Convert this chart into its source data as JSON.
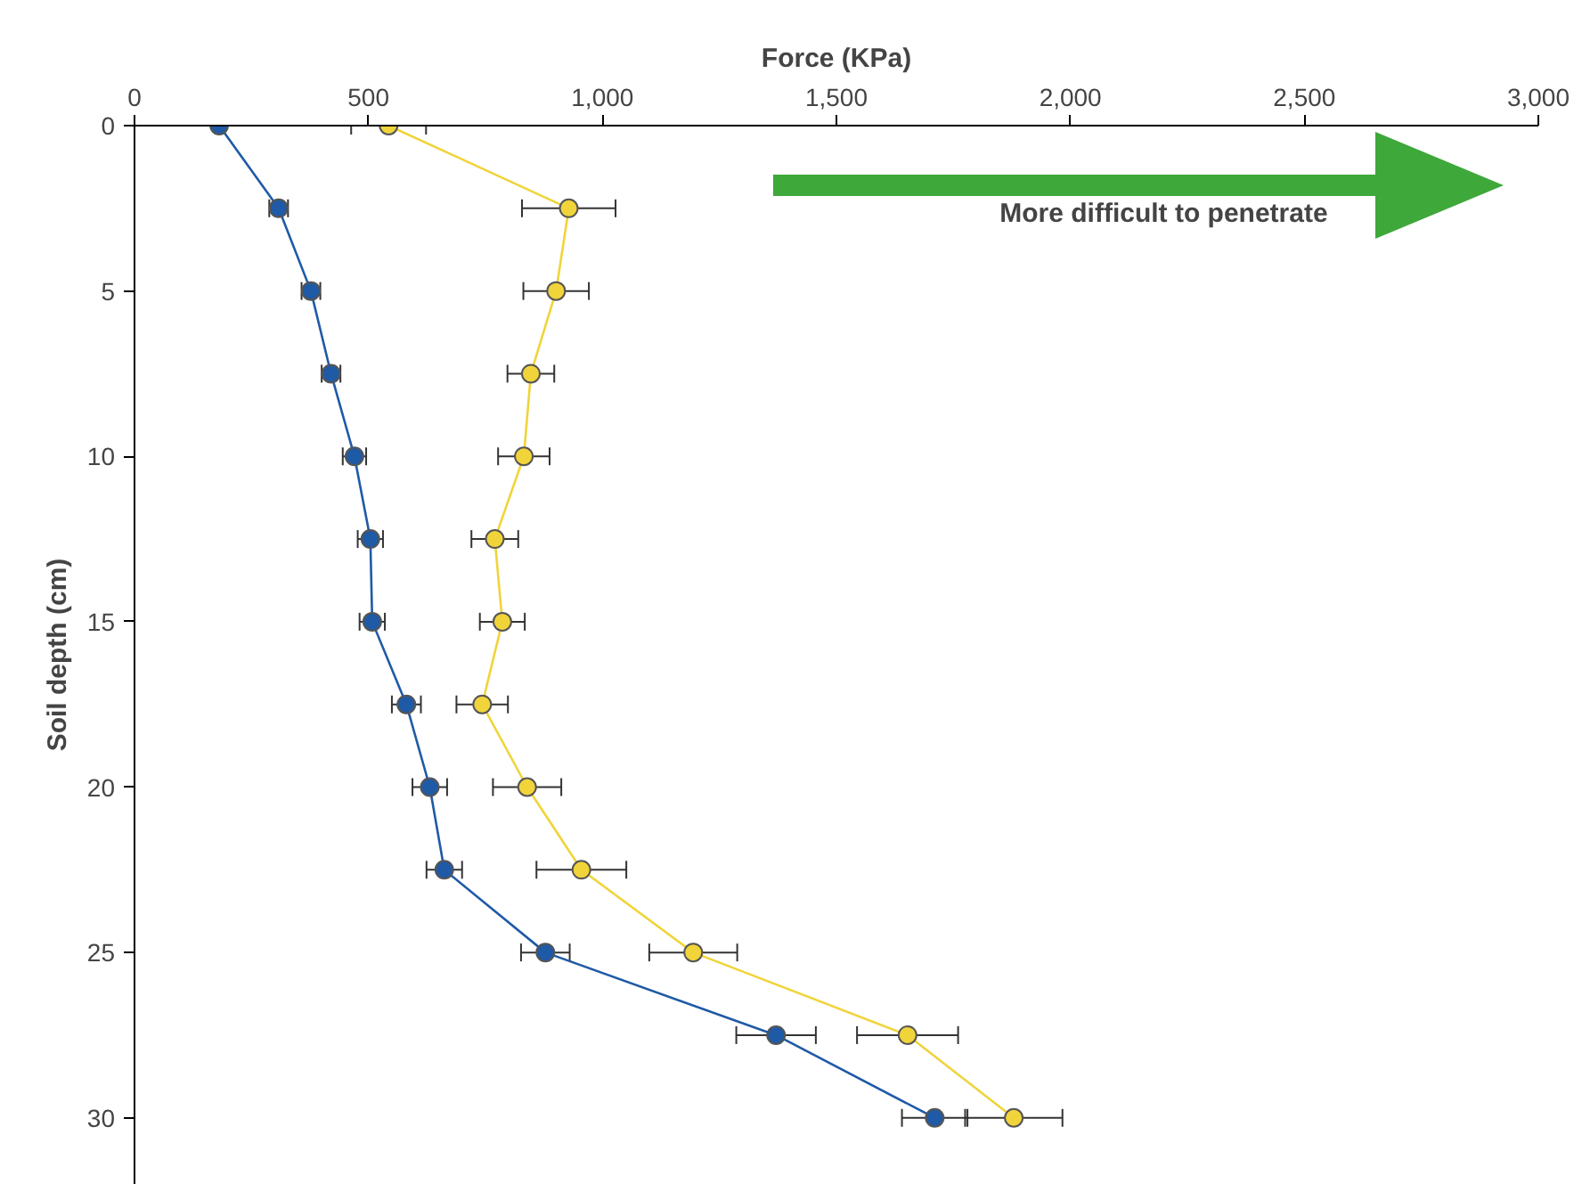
{
  "chart_data": {
    "type": "line",
    "xlabel": "Force (KPa)",
    "ylabel": "Soil depth (cm)",
    "annotations": [
      "More difficult to penetrate"
    ],
    "xlim": [
      0,
      3000
    ],
    "xticks": [
      0,
      500,
      {
        "value": 1000,
        "label": "1,000"
      },
      {
        "value": 1500,
        "label": "1,500"
      },
      {
        "value": 2000,
        "label": "2,000"
      },
      {
        "value": 2500,
        "label": "2,500"
      },
      {
        "value": 3000,
        "label": "3,000"
      }
    ],
    "ylim": [
      32,
      0
    ],
    "yticks": [
      0,
      5,
      10,
      15,
      20,
      25,
      30
    ],
    "grid": false,
    "marker": "circle",
    "line_style": "solid",
    "series": [
      {
        "color": "#1f5aa6",
        "x": [
          181,
          308,
          377,
          420,
          470,
          504,
          508,
          581,
          631,
          662,
          878,
          1371,
          1710
        ],
        "values": [
          0,
          2.5,
          5,
          7.5,
          10,
          12.5,
          15,
          17.5,
          20,
          22.5,
          25,
          27.5,
          30
        ],
        "xerrors": [
          null,
          20,
          20,
          20,
          25,
          27,
          27,
          31,
          37,
          38,
          52,
          85,
          70
        ]
      },
      {
        "color": "#f0d43a",
        "x": [
          543,
          928,
          901,
          847,
          832,
          770,
          786,
          743,
          839,
          955,
          1194,
          1652,
          1879
        ],
        "values": [
          0,
          2.5,
          5,
          7.5,
          10,
          12.5,
          15,
          17.5,
          20,
          22.5,
          25,
          27.5,
          30
        ],
        "xerrors": [
          80,
          100,
          70,
          50,
          55,
          50,
          48,
          55,
          73,
          96,
          94,
          108,
          104
        ]
      }
    ]
  }
}
